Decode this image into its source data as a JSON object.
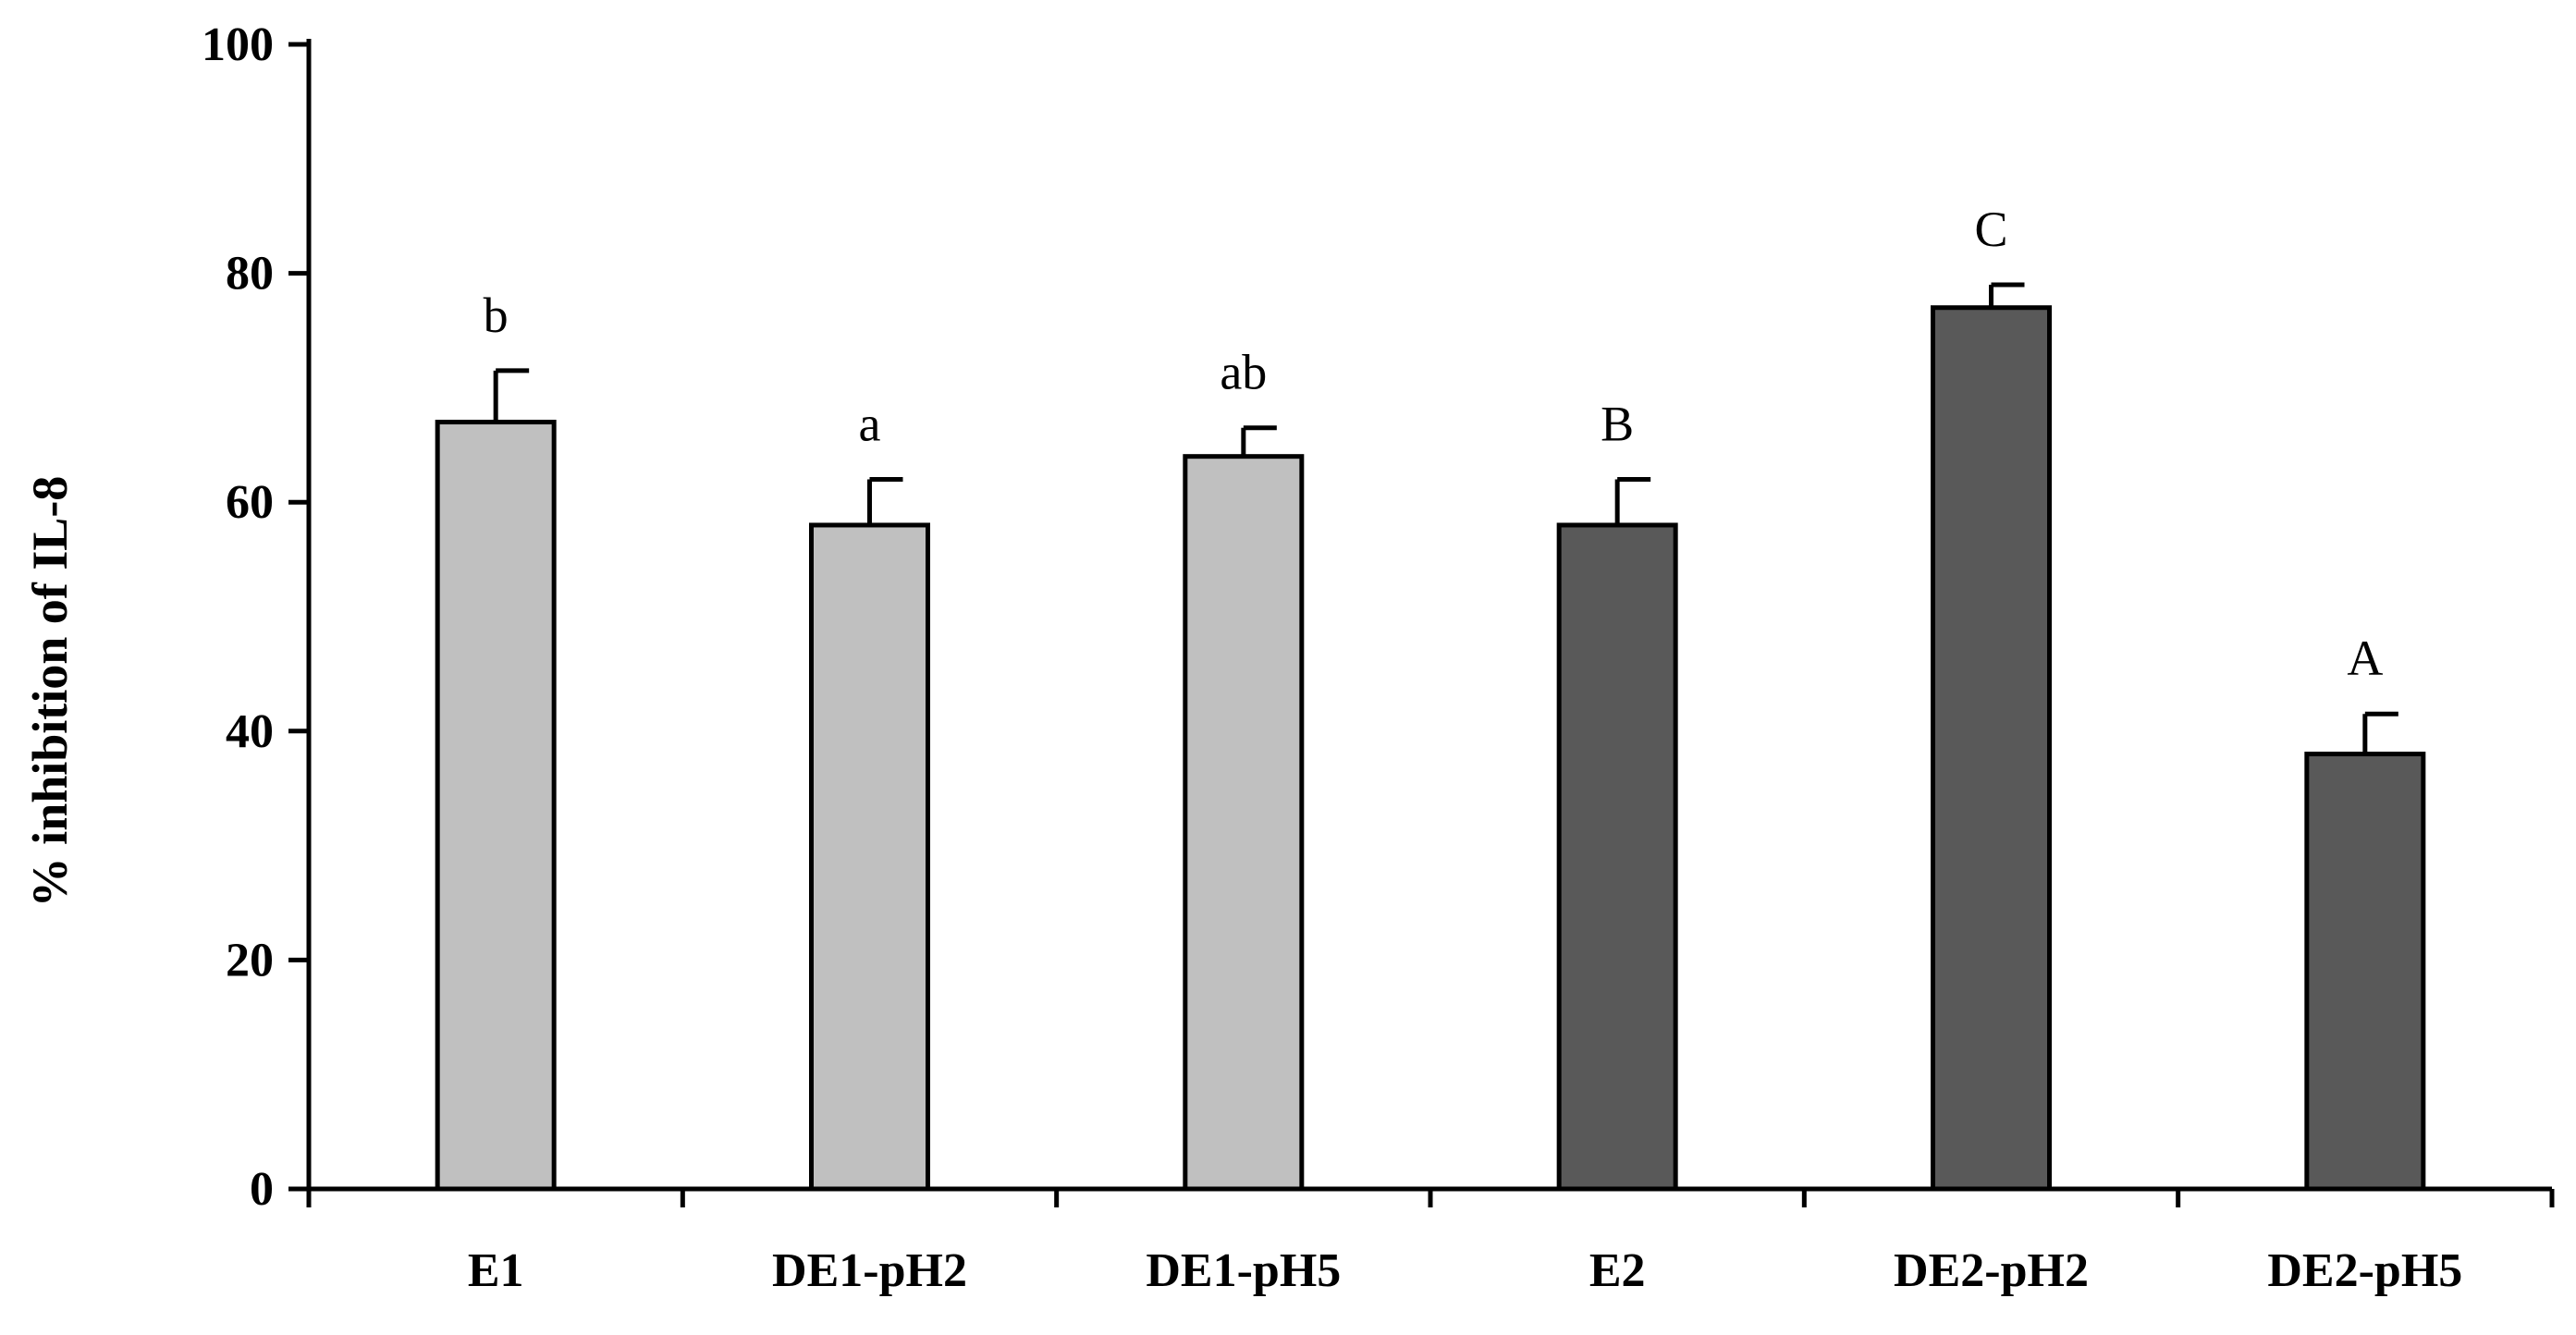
{
  "chart_data": {
    "type": "bar",
    "title": "",
    "xlabel": "",
    "ylabel": "% inhibition of IL-8",
    "ylim": [
      0,
      100
    ],
    "yticks": [
      0,
      20,
      40,
      60,
      80,
      100
    ],
    "grid": false,
    "categories": [
      "E1",
      "DE1-pH2",
      "DE1-pH5",
      "E2",
      "DE2-pH2",
      "DE2-pH5"
    ],
    "values": [
      67,
      58,
      64,
      58,
      77,
      38
    ],
    "errors": [
      4.5,
      4,
      2.5,
      4,
      2,
      3.5
    ],
    "annotations": [
      "b",
      "a",
      "ab",
      "B",
      "C",
      "A"
    ],
    "colors": [
      "#c0c0c0",
      "#c0c0c0",
      "#c0c0c0",
      "#595959",
      "#595959",
      "#595959"
    ]
  }
}
